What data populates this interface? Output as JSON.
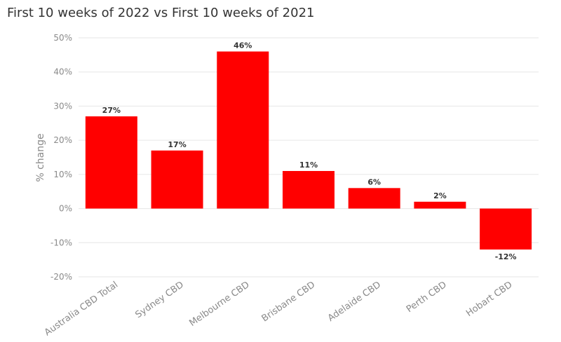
{
  "chart_data": {
    "type": "bar",
    "title": "First 10 weeks of 2022 vs First 10 weeks of 2021",
    "ylabel": "% change",
    "xlabel": "",
    "categories": [
      "Australia CBD Total",
      "Sydney CBD",
      "Melbourne CBD",
      "Brisbane CBD",
      "Adelaide CBD",
      "Perth CBD",
      "Hobart CBD"
    ],
    "values": [
      27,
      17,
      46,
      11,
      6,
      2,
      -12
    ],
    "data_labels": [
      "27%",
      "17%",
      "46%",
      "11%",
      "6%",
      "2%",
      "-12%"
    ],
    "ylim": [
      -20,
      50
    ],
    "yticks": [
      -20,
      -10,
      0,
      10,
      20,
      30,
      40,
      50
    ],
    "ytick_labels": [
      "-20%",
      "-10%",
      "0%",
      "10%",
      "20%",
      "30%",
      "40%",
      "50%"
    ],
    "bar_color": "#ff0000",
    "grid": true,
    "legend": "none"
  }
}
